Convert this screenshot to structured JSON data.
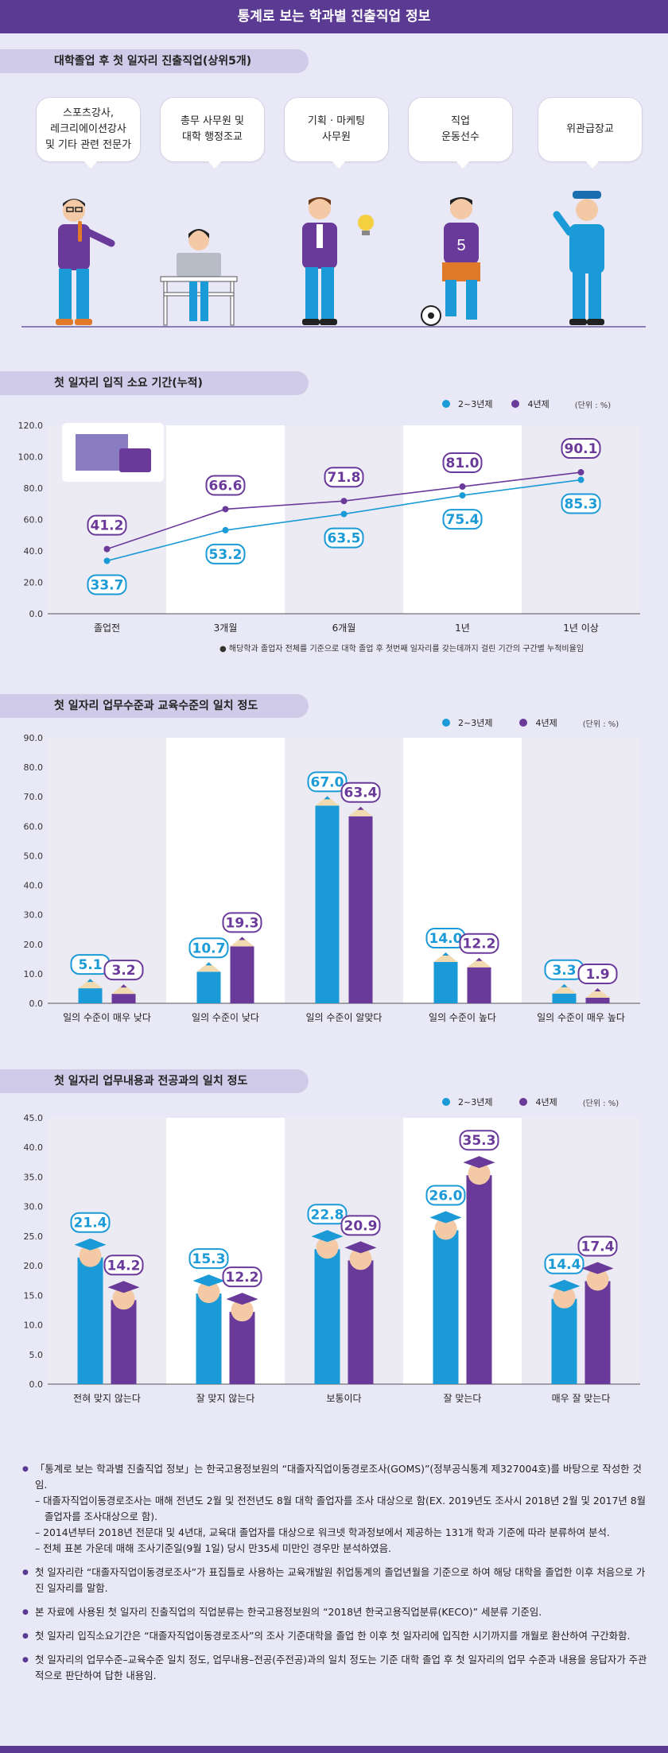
{
  "page_title": "통계로 보는 학과별 진출직업 정보",
  "section1": {
    "title": "대학졸업 후 첫 일자리 진출직업(상위5개)",
    "jobs": [
      "스포츠강사,\n레크리에이션강사\n및 기타 관련 전문가",
      "총무 사무원 및\n대학 행정조교",
      "기획 · 마케팅\n사무원",
      "직업\n운동선수",
      "위관급장교"
    ],
    "jersey_number": "5"
  },
  "colors": {
    "two_three": "#1a9ad6",
    "four": "#6a3a9a",
    "accent": "#5b3a93"
  },
  "chart_data": [
    {
      "type": "line",
      "title": "첫 일자리 입직 소요 기간(누적)",
      "categories": [
        "졸업전",
        "3개월",
        "6개월",
        "1년",
        "1년 이상"
      ],
      "series": [
        {
          "name": "2~3년제",
          "values": [
            33.7,
            53.2,
            63.5,
            75.4,
            85.3
          ]
        },
        {
          "name": "4년제",
          "values": [
            41.2,
            66.6,
            71.8,
            81.0,
            90.1
          ]
        }
      ],
      "ylim": [
        0,
        120
      ],
      "yticks": [
        "0.0",
        "20.0",
        "40.0",
        "60.0",
        "80.0",
        "100.0",
        "120.0"
      ],
      "unit": "(단위 : %)",
      "footnote": "● 해당학과 졸업자 전체를 기준으로 대학 졸업 후 첫번째 일자리를 갖는데까지 걸린 기간의 구간별 누적비율임"
    },
    {
      "type": "bar",
      "title": "첫 일자리 업무수준과 교육수준의 일치 정도",
      "categories": [
        "일의 수준이 매우 낮다",
        "일의 수준이 낮다",
        "일의 수준이 알맞다",
        "일의 수준이 높다",
        "일의 수준이 매우 높다"
      ],
      "series": [
        {
          "name": "2~3년제",
          "values": [
            5.1,
            10.7,
            67.0,
            14.0,
            3.3
          ]
        },
        {
          "name": "4년제",
          "values": [
            3.2,
            19.3,
            63.4,
            12.2,
            1.9
          ]
        }
      ],
      "ylim": [
        0,
        90
      ],
      "yticks": [
        "0.0",
        "10.0",
        "20.0",
        "30.0",
        "40.0",
        "50.0",
        "60.0",
        "70.0",
        "80.0",
        "90.0"
      ],
      "unit": "(단위 : %)"
    },
    {
      "type": "bar",
      "title": "첫 일자리 업무내용과 전공과의 일치 정도",
      "categories": [
        "전혀 맞지 않는다",
        "잘 맞지 않는다",
        "보통이다",
        "잘 맞는다",
        "매우 잘 맞는다"
      ],
      "series": [
        {
          "name": "2~3년제",
          "values": [
            21.4,
            15.3,
            22.8,
            26.0,
            14.4
          ]
        },
        {
          "name": "4년제",
          "values": [
            14.2,
            12.2,
            20.9,
            35.3,
            17.4
          ]
        }
      ],
      "ylim": [
        0,
        45
      ],
      "yticks": [
        "0.0",
        "5.0",
        "10.0",
        "15.0",
        "20.0",
        "25.0",
        "30.0",
        "35.0",
        "40.0",
        "45.0"
      ],
      "unit": "(단위 : %)"
    }
  ],
  "notes": [
    "「통계로 보는 학과별 진출직업 정보」는 한국고용정보원의 “대졸자직업이동경로조사(GOMS)”(정부공식통계 제327004호)를 바탕으로 작성한 것임.",
    "– 대졸자직업이동경로조사는 매해 전년도 2월 및 전전년도 8월 대학 졸업자를 조사 대상으로 함(EX. 2019년도 조사시 2018년 2월 및 2017년 8월 졸업자를 조사대상으로 함).",
    "– 2014년부터 2018년 전문대 및 4년대, 교육대 졸업자를 대상으로 워크넷 학과정보에서 제공하는 131개 학과 기준에 따라 분류하여 분석.",
    "– 전체 표본 가운데 매해 조사기준일(9월 1일) 당시 만35세 미만인 경우만 분석하였음.",
    "첫 일자리란 “대졸자직업이동경로조사”가 표집틀로 사용하는 교육개발원 취업통계의 졸업년월을 기준으로 하여 해당 대학을 졸업한 이후 처음으로 가진 일자리를 말함.",
    "본 자료에 사용된 첫 일자리 진출직업의 직업분류는 한국고용정보원의 “2018년 한국고용직업분류(KECO)” 세분류 기준임.",
    "첫 일자리 입직소요기간은 “대졸자직업이동경로조사”의 조사 기준대학을 졸업 한 이후 첫 일자리에 입직한 시기까지를 개월로 환산하여 구간화함.",
    "첫 일자리의 업무수준–교육수준 일치 정도, 업무내용–전공(주전공)과의 일치 정도는 기준 대학 졸업 후 첫 일자리의 업무 수준과 내용을 응답자가 주관적으로 판단하여 답한 내용임."
  ]
}
